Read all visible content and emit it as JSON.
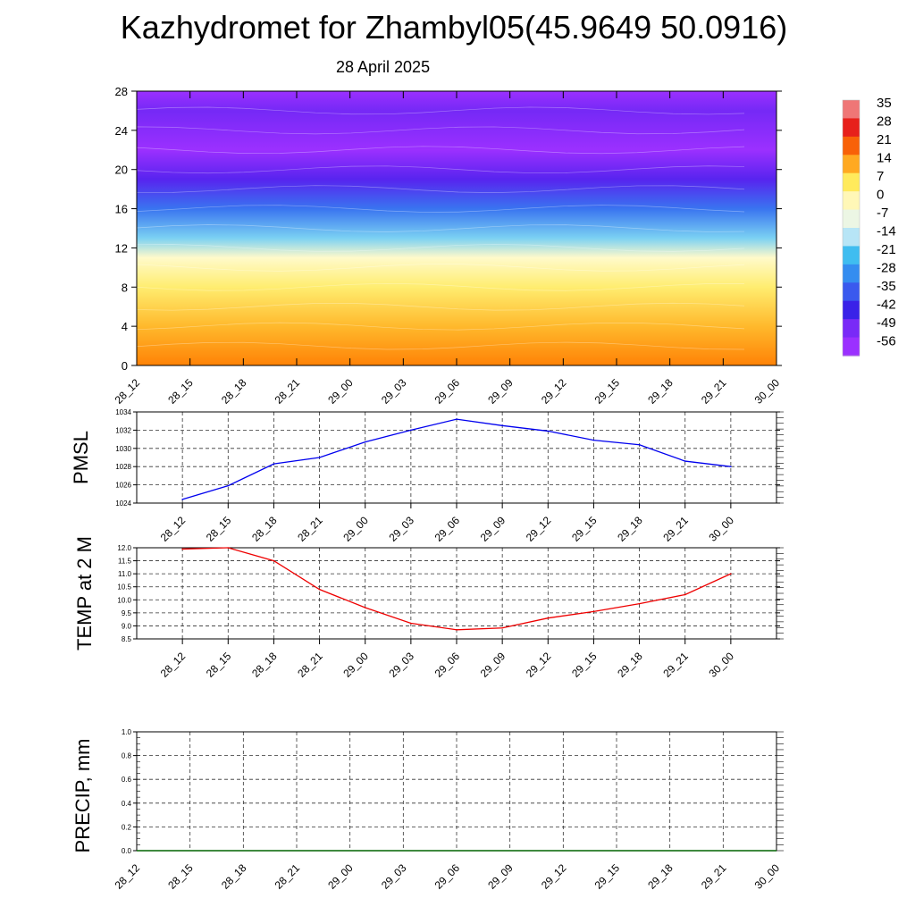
{
  "title": "Kazhydromet for Zhambyl05(45.9649 50.0916)",
  "subtitle": "28 April 2025",
  "time_labels": [
    "28_12",
    "28_15",
    "28_18",
    "28_21",
    "29_00",
    "29_03",
    "29_06",
    "29_09",
    "29_12",
    "29_15",
    "29_18",
    "29_21",
    "30_00"
  ],
  "chart_data": [
    {
      "type": "heatmap",
      "name": "temperature-cross-section",
      "y_ticks": [
        0,
        4,
        8,
        12,
        16,
        20,
        24,
        28
      ],
      "ylim": [
        0,
        28
      ],
      "colorbar_labels": [
        "35",
        "28",
        "21",
        "14",
        "7",
        "0",
        "-7",
        "-14",
        "-21",
        "-28",
        "-35",
        "-42",
        "-49",
        "-56"
      ],
      "colors": [
        "#f4a5a5",
        "#e61c1c",
        "#ff7a00",
        "#ffe84d",
        "#fffbd0",
        "#d8f0f8",
        "#2bb6ef",
        "#3a6ff0",
        "#3a1fe8",
        "#9b30ff"
      ],
      "levels": [
        {
          "y": 0,
          "value": 14
        },
        {
          "y": 4,
          "value": 9
        },
        {
          "y": 8,
          "value": 2
        },
        {
          "y": 11,
          "value": -5
        },
        {
          "y": 13,
          "value": -21
        },
        {
          "y": 16,
          "value": -35
        },
        {
          "y": 19,
          "value": -49
        },
        {
          "y": 22,
          "value": -56
        },
        {
          "y": 26,
          "value": -52
        },
        {
          "y": 28,
          "value": -56
        }
      ]
    },
    {
      "type": "line",
      "ylabel": "PMSL",
      "ylim": [
        1024,
        1034
      ],
      "y_ticks": [
        "1024",
        "1026",
        "1028",
        "1030",
        "1032",
        "1034"
      ],
      "color": "#0000ee",
      "values": [
        1024.4,
        1025.9,
        1028.3,
        1029.0,
        1030.7,
        1032.0,
        1033.2,
        1032.5,
        1031.9,
        1030.9,
        1030.4,
        1028.6,
        1028.0
      ]
    },
    {
      "type": "line",
      "ylabel": "TEMP at 2 M",
      "ylim": [
        8.5,
        12.0
      ],
      "y_ticks": [
        "8.5",
        "9.0",
        "9.5",
        "10.0",
        "10.5",
        "11.0",
        "11.5",
        "12.0"
      ],
      "color": "#ee0000",
      "values": [
        11.95,
        12.0,
        11.5,
        10.4,
        9.7,
        9.1,
        8.85,
        8.92,
        9.3,
        9.55,
        9.85,
        10.2,
        11.0
      ]
    },
    {
      "type": "line",
      "ylabel": "PRECIP, mm",
      "ylim": [
        0.0,
        1.0
      ],
      "y_ticks": [
        "0.0",
        "0.2",
        "0.4",
        "0.6",
        "0.8",
        "1.0"
      ],
      "color": "#006400",
      "values": [
        0,
        0,
        0,
        0,
        0,
        0,
        0,
        0,
        0,
        0,
        0,
        0,
        0
      ]
    }
  ]
}
